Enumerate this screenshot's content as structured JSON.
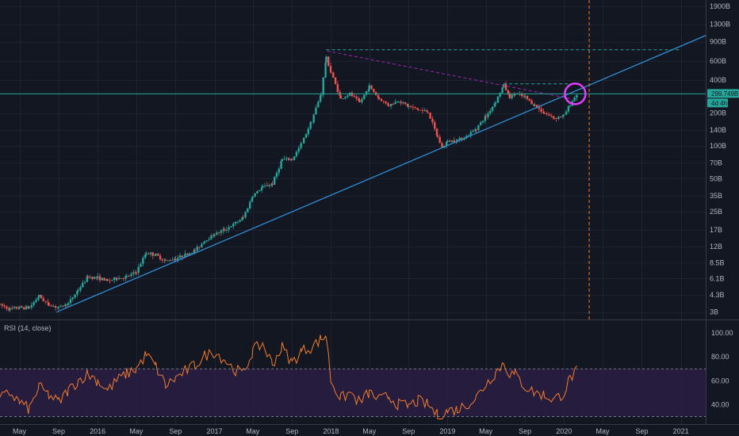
{
  "chart_data": [
    {
      "type": "candlestick",
      "scale": "log",
      "x_start": "2015-03-01",
      "y_axis_ticks": [
        "1900B",
        "1300B",
        "900B",
        "600B",
        "400B",
        "200B",
        "140B",
        "100B",
        "70B",
        "50B",
        "35B",
        "25B",
        "17B",
        "12B",
        "8.5B",
        "6.1B",
        "4.3B",
        "3B"
      ],
      "y_axis_values": [
        1900,
        1300,
        900,
        600,
        400,
        200,
        140,
        100,
        70,
        50,
        35,
        25,
        17,
        12,
        8.5,
        6.1,
        4.3,
        3
      ],
      "ylim": [
        2.7,
        2100
      ],
      "x_axis_ticks": [
        "May",
        "Sep",
        "2016",
        "May",
        "Sep",
        "2017",
        "May",
        "Sep",
        "2018",
        "May",
        "Sep",
        "2019",
        "May",
        "Sep",
        "2020",
        "May",
        "Sep",
        "2021"
      ],
      "x_tick_dates": [
        "2015-05-01",
        "2015-09-01",
        "2016-01-01",
        "2016-05-01",
        "2016-09-01",
        "2017-01-01",
        "2017-05-01",
        "2017-09-01",
        "2018-01-01",
        "2018-05-01",
        "2018-09-01",
        "2019-01-01",
        "2019-05-01",
        "2019-09-01",
        "2020-01-01",
        "2020-05-01",
        "2020-09-01",
        "2021-01-01"
      ],
      "xlim": [
        "2015-03-01",
        "2021-03-20"
      ],
      "current_price_label": "299.749B",
      "countdown_label": "4d 4h",
      "current_price": 299.749,
      "price_points": [
        [
          "2015-03-01",
          3.5
        ],
        [
          "2015-04-01",
          3.2
        ],
        [
          "2015-05-01",
          3.3
        ],
        [
          "2015-06-01",
          3.3
        ],
        [
          "2015-07-01",
          4.2
        ],
        [
          "2015-08-01",
          3.5
        ],
        [
          "2015-09-01",
          3.3
        ],
        [
          "2015-10-01",
          3.6
        ],
        [
          "2015-11-01",
          4.8
        ],
        [
          "2015-12-01",
          6.3
        ],
        [
          "2016-01-01",
          6.2
        ],
        [
          "2016-02-01",
          5.8
        ],
        [
          "2016-03-01",
          6.1
        ],
        [
          "2016-04-01",
          6.3
        ],
        [
          "2016-05-01",
          7.0
        ],
        [
          "2016-06-01",
          10.5
        ],
        [
          "2016-07-01",
          10.0
        ],
        [
          "2016-08-01",
          8.8
        ],
        [
          "2016-09-01",
          9.3
        ],
        [
          "2016-10-01",
          10.0
        ],
        [
          "2016-11-01",
          11.0
        ],
        [
          "2016-12-01",
          13.5
        ],
        [
          "2017-01-01",
          15.5
        ],
        [
          "2017-02-01",
          17.0
        ],
        [
          "2017-03-01",
          19.0
        ],
        [
          "2017-04-01",
          22.0
        ],
        [
          "2017-05-01",
          35.0
        ],
        [
          "2017-06-01",
          42.0
        ],
        [
          "2017-07-01",
          45.0
        ],
        [
          "2017-08-01",
          75.0
        ],
        [
          "2017-09-01",
          75.0
        ],
        [
          "2017-10-01",
          105.0
        ],
        [
          "2017-11-01",
          170.0
        ],
        [
          "2017-12-01",
          300.0
        ],
        [
          "2017-12-17",
          640.0
        ],
        [
          "2018-01-01",
          470.0
        ],
        [
          "2018-02-01",
          270.0
        ],
        [
          "2018-03-01",
          300.0
        ],
        [
          "2018-04-01",
          250.0
        ],
        [
          "2018-05-01",
          350.0
        ],
        [
          "2018-06-01",
          270.0
        ],
        [
          "2018-07-01",
          235.0
        ],
        [
          "2018-08-01",
          260.0
        ],
        [
          "2018-09-01",
          230.0
        ],
        [
          "2018-10-01",
          215.0
        ],
        [
          "2018-11-01",
          205.0
        ],
        [
          "2018-12-01",
          120.0
        ],
        [
          "2018-12-15",
          96.0
        ],
        [
          "2019-01-01",
          110.0
        ],
        [
          "2019-02-01",
          113.0
        ],
        [
          "2019-03-01",
          122.0
        ],
        [
          "2019-04-01",
          145.0
        ],
        [
          "2019-05-01",
          185.0
        ],
        [
          "2019-06-01",
          255.0
        ],
        [
          "2019-06-26",
          360.0
        ],
        [
          "2019-07-15",
          280.0
        ],
        [
          "2019-08-01",
          300.0
        ],
        [
          "2019-09-01",
          280.0
        ],
        [
          "2019-10-01",
          235.0
        ],
        [
          "2019-11-01",
          200.0
        ],
        [
          "2019-12-01",
          180.0
        ],
        [
          "2020-01-01",
          190.0
        ],
        [
          "2020-01-20",
          240.0
        ],
        [
          "2020-02-10",
          299.7
        ]
      ],
      "rsi": {
        "label": "RSI (14, close)",
        "y_axis_ticks": [
          "100.00",
          "80.00",
          "60.00",
          "40.00"
        ],
        "y_axis_values": [
          100,
          80,
          60,
          40
        ],
        "ylim": [
          27,
          108
        ],
        "upper_band": 70,
        "lower_band": 30,
        "points": [
          [
            "2015-03-01",
            45
          ],
          [
            "2015-04-01",
            50
          ],
          [
            "2015-05-01",
            42
          ],
          [
            "2015-06-01",
            36
          ],
          [
            "2015-07-01",
            55
          ],
          [
            "2015-08-01",
            48
          ],
          [
            "2015-09-01",
            42
          ],
          [
            "2015-10-01",
            52
          ],
          [
            "2015-11-01",
            60
          ],
          [
            "2015-12-01",
            66
          ],
          [
            "2016-01-01",
            60
          ],
          [
            "2016-02-01",
            52
          ],
          [
            "2016-03-01",
            60
          ],
          [
            "2016-04-01",
            66
          ],
          [
            "2016-05-01",
            70
          ],
          [
            "2016-06-01",
            82
          ],
          [
            "2016-07-01",
            72
          ],
          [
            "2016-08-01",
            56
          ],
          [
            "2016-09-01",
            62
          ],
          [
            "2016-10-01",
            68
          ],
          [
            "2016-11-01",
            73
          ],
          [
            "2016-12-01",
            81
          ],
          [
            "2017-01-01",
            84
          ],
          [
            "2017-02-01",
            78
          ],
          [
            "2017-03-01",
            70
          ],
          [
            "2017-04-01",
            66
          ],
          [
            "2017-05-01",
            85
          ],
          [
            "2017-06-01",
            91
          ],
          [
            "2017-07-01",
            74
          ],
          [
            "2017-08-01",
            88
          ],
          [
            "2017-09-01",
            75
          ],
          [
            "2017-10-01",
            85
          ],
          [
            "2017-11-01",
            88
          ],
          [
            "2017-12-01",
            95
          ],
          [
            "2017-12-17",
            98
          ],
          [
            "2018-01-01",
            60
          ],
          [
            "2018-02-01",
            45
          ],
          [
            "2018-03-01",
            50
          ],
          [
            "2018-04-01",
            42
          ],
          [
            "2018-05-01",
            50
          ],
          [
            "2018-06-01",
            44
          ],
          [
            "2018-07-01",
            47
          ],
          [
            "2018-08-01",
            40
          ],
          [
            "2018-09-01",
            39
          ],
          [
            "2018-10-01",
            43
          ],
          [
            "2018-11-01",
            40
          ],
          [
            "2018-12-01",
            31
          ],
          [
            "2018-12-15",
            29
          ],
          [
            "2019-01-01",
            35
          ],
          [
            "2019-02-01",
            36
          ],
          [
            "2019-03-01",
            40
          ],
          [
            "2019-04-01",
            46
          ],
          [
            "2019-05-01",
            57
          ],
          [
            "2019-06-01",
            67
          ],
          [
            "2019-06-26",
            75
          ],
          [
            "2019-07-15",
            66
          ],
          [
            "2019-08-01",
            65
          ],
          [
            "2019-09-01",
            55
          ],
          [
            "2019-10-01",
            50
          ],
          [
            "2019-11-01",
            48
          ],
          [
            "2019-12-01",
            44
          ],
          [
            "2020-01-01",
            50
          ],
          [
            "2020-01-20",
            62
          ],
          [
            "2020-02-10",
            68
          ]
        ]
      }
    }
  ]
}
